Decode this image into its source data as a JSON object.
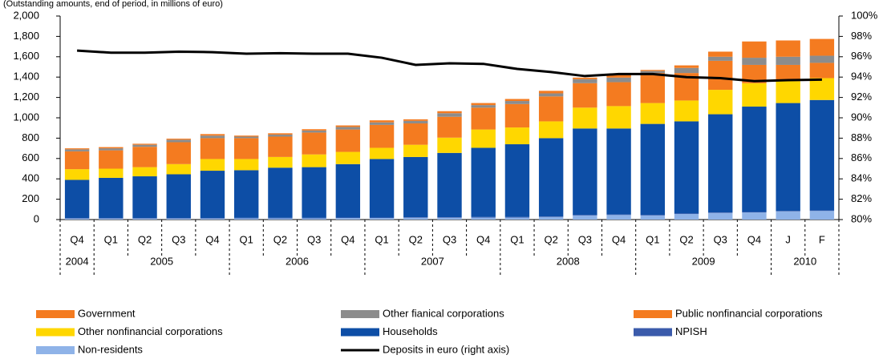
{
  "chart_data": {
    "type": "bar",
    "subtitle": "(Outstanding amounts, end of period, in millions of euro)",
    "categories": [
      "Q4",
      "Q1",
      "Q2",
      "Q3",
      "Q4",
      "Q1",
      "Q2",
      "Q3",
      "Q4",
      "Q1",
      "Q2",
      "Q3",
      "Q4",
      "Q1",
      "Q2",
      "Q3",
      "Q4",
      "Q1",
      "Q2",
      "Q3",
      "Q4",
      "J",
      "F"
    ],
    "category_years": [
      "2004",
      "2005",
      "2005",
      "2005",
      "2005",
      "2006",
      "2006",
      "2006",
      "2006",
      "2007",
      "2007",
      "2007",
      "2007",
      "2008",
      "2008",
      "2008",
      "2008",
      "2009",
      "2009",
      "2009",
      "2009",
      "2010",
      "2010"
    ],
    "stacked": true,
    "ylim": [
      0,
      2000
    ],
    "yticks": [
      0,
      200,
      400,
      600,
      800,
      {
        "value": 1000,
        "label": "1,000"
      },
      {
        "value": 1200,
        "label": "1,200"
      },
      {
        "value": 1400,
        "label": "1,400"
      },
      {
        "value": 1600,
        "label": "1,600"
      },
      {
        "value": 1800,
        "label": "1,800"
      },
      {
        "value": 2000,
        "label": "2,000"
      }
    ],
    "y2lim": [
      80,
      100
    ],
    "y2ticks": [
      {
        "value": 80,
        "label": "80%"
      },
      {
        "value": 82,
        "label": "82%"
      },
      {
        "value": 84,
        "label": "84%"
      },
      {
        "value": 86,
        "label": "86%"
      },
      {
        "value": 88,
        "label": "88%"
      },
      {
        "value": 90,
        "label": "90%"
      },
      {
        "value": 92,
        "label": "92%"
      },
      {
        "value": 94,
        "label": "94%"
      },
      {
        "value": 96,
        "label": "96%"
      },
      {
        "value": 98,
        "label": "98%"
      },
      {
        "value": 100,
        "label": "100%"
      }
    ],
    "series": [
      {
        "name": "Non-residents",
        "color": "#8fb3e8",
        "values": [
          10,
          10,
          10,
          10,
          10,
          12,
          12,
          12,
          15,
          15,
          18,
          18,
          20,
          20,
          25,
          40,
          45,
          40,
          55,
          65,
          70,
          80,
          85
        ]
      },
      {
        "name": "NPISH",
        "color": "#3b5bab",
        "values": [
          5,
          5,
          5,
          5,
          5,
          5,
          5,
          5,
          5,
          5,
          5,
          5,
          5,
          5,
          5,
          5,
          5,
          5,
          5,
          5,
          5,
          5,
          5
        ]
      },
      {
        "name": "Households",
        "color": "#0d4ea6",
        "values": [
          375,
          395,
          410,
          430,
          465,
          468,
          493,
          498,
          525,
          575,
          592,
          632,
          680,
          715,
          770,
          850,
          845,
          895,
          905,
          965,
          1035,
          1060,
          1085
        ]
      },
      {
        "name": "Other nonfinancial corporations",
        "color": "#ffd700",
        "values": [
          105,
          90,
          90,
          100,
          115,
          110,
          105,
          125,
          120,
          110,
          120,
          150,
          180,
          165,
          165,
          205,
          220,
          205,
          205,
          240,
          230,
          215,
          215
        ]
      },
      {
        "name": "Public nonfinancial corporations",
        "color": "#f47b20",
        "values": [
          175,
          180,
          200,
          215,
          205,
          205,
          200,
          215,
          220,
          225,
          210,
          205,
          215,
          230,
          245,
          240,
          235,
          295,
          270,
          285,
          180,
          160,
          150
        ]
      },
      {
        "name": "Other fianical corporations",
        "color": "#8c8c8c",
        "values": [
          20,
          20,
          20,
          25,
          25,
          15,
          20,
          20,
          25,
          25,
          25,
          35,
          25,
          30,
          30,
          40,
          45,
          20,
          50,
          40,
          70,
          80,
          70
        ]
      },
      {
        "name": "Government",
        "color": "#f47b20",
        "values": [
          10,
          12,
          10,
          10,
          15,
          10,
          13,
          13,
          15,
          20,
          15,
          20,
          20,
          20,
          25,
          15,
          35,
          10,
          25,
          50,
          160,
          160,
          165
        ]
      },
      {
        "name": "Deposits in euro (right axis)",
        "color": "#000000",
        "type": "line",
        "axis": "y2",
        "values": [
          96.6,
          96.4,
          96.4,
          96.5,
          96.45,
          96.3,
          96.35,
          96.3,
          96.3,
          95.9,
          95.2,
          95.35,
          95.3,
          94.8,
          94.5,
          94.1,
          94.3,
          94.3,
          94.0,
          93.9,
          93.6,
          93.7,
          93.75
        ]
      }
    ]
  }
}
